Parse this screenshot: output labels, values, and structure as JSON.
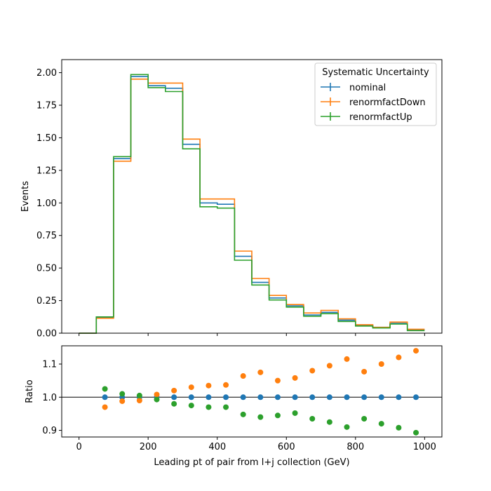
{
  "chart_data": [
    {
      "type": "line",
      "panel": "main",
      "drawstyle": "steps",
      "xlabel": "",
      "ylabel": "Events",
      "xlim": [
        -50,
        1050
      ],
      "ylim": [
        0.0,
        2.1
      ],
      "yticks": [
        0.0,
        0.25,
        0.5,
        0.75,
        1.0,
        1.25,
        1.5,
        1.75,
        2.0
      ],
      "ytick_labels": [
        "0.00",
        "0.25",
        "0.50",
        "0.75",
        "1.00",
        "1.25",
        "1.50",
        "1.75",
        "2.00"
      ],
      "bin_edges": [
        0,
        50,
        100,
        150,
        200,
        250,
        300,
        350,
        400,
        450,
        500,
        550,
        600,
        650,
        700,
        750,
        800,
        850,
        900,
        950,
        1000
      ],
      "legend": {
        "title": "Systematic Uncertainty",
        "position": "top-right"
      },
      "series": [
        {
          "name": "nominal",
          "color": "#1f77b4",
          "values": [
            0.0,
            0.12,
            1.34,
            1.97,
            1.9,
            1.88,
            1.45,
            1.0,
            0.99,
            0.59,
            0.39,
            0.27,
            0.21,
            0.14,
            0.16,
            0.1,
            0.06,
            0.045,
            0.075,
            0.025
          ]
        },
        {
          "name": "renormfactDown",
          "color": "#ff7f0e",
          "values": [
            0.0,
            0.115,
            1.32,
            1.95,
            1.92,
            1.92,
            1.49,
            1.03,
            1.03,
            0.63,
            0.42,
            0.29,
            0.22,
            0.155,
            0.175,
            0.11,
            0.065,
            0.045,
            0.085,
            0.03
          ]
        },
        {
          "name": "renormfactUp",
          "color": "#2ca02c",
          "values": [
            0.0,
            0.125,
            1.355,
            1.985,
            1.885,
            1.855,
            1.415,
            0.97,
            0.96,
            0.56,
            0.37,
            0.255,
            0.2,
            0.13,
            0.15,
            0.09,
            0.055,
            0.04,
            0.07,
            0.02
          ]
        }
      ]
    },
    {
      "type": "scatter",
      "panel": "ratio",
      "xlabel": "Leading pt of pair from l+j collection (GeV)",
      "ylabel": "Ratio",
      "xlim": [
        -50,
        1050
      ],
      "ylim": [
        0.88,
        1.155
      ],
      "xticks": [
        0,
        200,
        400,
        600,
        800,
        1000
      ],
      "xtick_labels": [
        "0",
        "200",
        "400",
        "600",
        "800",
        "1000"
      ],
      "yticks": [
        0.9,
        1.0,
        1.1
      ],
      "ytick_labels": [
        "0.9",
        "1.0",
        "1.1"
      ],
      "reference_line": 1.0,
      "x": [
        75,
        125,
        175,
        225,
        275,
        325,
        375,
        425,
        475,
        525,
        575,
        625,
        675,
        725,
        775,
        825,
        875,
        925,
        975
      ],
      "series": [
        {
          "name": "nominal",
          "color": "#1f77b4",
          "values": [
            1.0,
            1.0,
            1.0,
            1.0,
            1.0,
            1.0,
            1.0,
            1.0,
            1.0,
            1.0,
            1.0,
            1.0,
            1.0,
            1.0,
            1.0,
            1.0,
            1.0,
            1.0,
            1.0
          ]
        },
        {
          "name": "renormfactDown",
          "color": "#ff7f0e",
          "values": [
            0.97,
            0.988,
            0.99,
            1.008,
            1.02,
            1.03,
            1.035,
            1.037,
            1.064,
            1.075,
            1.05,
            1.058,
            1.08,
            1.095,
            1.115,
            1.077,
            1.1,
            1.12,
            1.14
          ]
        },
        {
          "name": "renormfactUp",
          "color": "#2ca02c",
          "values": [
            1.025,
            1.01,
            1.005,
            0.993,
            0.98,
            0.975,
            0.97,
            0.97,
            0.948,
            0.94,
            0.945,
            0.952,
            0.935,
            0.925,
            0.91,
            0.935,
            0.92,
            0.908,
            0.893
          ]
        }
      ]
    }
  ]
}
